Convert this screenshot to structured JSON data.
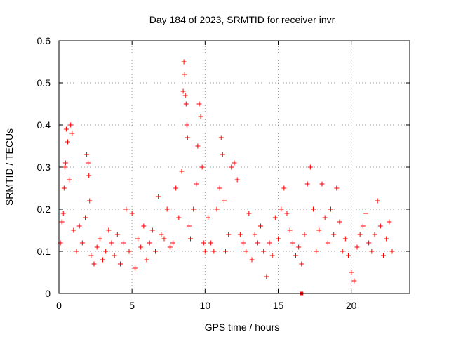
{
  "chart_data": {
    "type": "scatter",
    "title": "Day 184 of 2023, SRMTID for receiver invr",
    "xlabel": "GPS time / hours",
    "ylabel": "SRMTID / TECUs",
    "xlim": [
      0,
      24
    ],
    "ylim": [
      0,
      0.6
    ],
    "xticks": [
      0,
      5,
      10,
      15,
      20
    ],
    "xtick_labels": [
      "0",
      "5",
      "10",
      "15",
      "20"
    ],
    "yticks": [
      0,
      0.1,
      0.2,
      0.3,
      0.4,
      0.5,
      0.6
    ],
    "ytick_labels": [
      "0",
      "0.1",
      "0.2",
      "0.3",
      "0.4",
      "0.5",
      "0.6"
    ],
    "grid": true,
    "marker": "plus",
    "color": "#ff0000",
    "series": [
      {
        "name": "SRMTID",
        "points": [
          [
            0.1,
            0.12
          ],
          [
            0.2,
            0.17
          ],
          [
            0.3,
            0.19
          ],
          [
            0.35,
            0.25
          ],
          [
            0.4,
            0.3
          ],
          [
            0.45,
            0.31
          ],
          [
            0.5,
            0.39
          ],
          [
            0.6,
            0.36
          ],
          [
            0.7,
            0.27
          ],
          [
            0.8,
            0.4
          ],
          [
            0.9,
            0.38
          ],
          [
            1.0,
            0.15
          ],
          [
            1.2,
            0.1
          ],
          [
            1.4,
            0.16
          ],
          [
            1.6,
            0.12
          ],
          [
            1.8,
            0.18
          ],
          [
            1.9,
            0.33
          ],
          [
            2.0,
            0.31
          ],
          [
            2.05,
            0.28
          ],
          [
            2.1,
            0.22
          ],
          [
            2.2,
            0.09
          ],
          [
            2.4,
            0.07
          ],
          [
            2.6,
            0.11
          ],
          [
            2.8,
            0.13
          ],
          [
            3.0,
            0.08
          ],
          [
            3.2,
            0.1
          ],
          [
            3.4,
            0.15
          ],
          [
            3.6,
            0.12
          ],
          [
            3.8,
            0.09
          ],
          [
            4.0,
            0.14
          ],
          [
            4.2,
            0.07
          ],
          [
            4.4,
            0.12
          ],
          [
            4.6,
            0.2
          ],
          [
            4.8,
            0.1
          ],
          [
            5.0,
            0.19
          ],
          [
            5.2,
            0.06
          ],
          [
            5.4,
            0.13
          ],
          [
            5.6,
            0.11
          ],
          [
            5.8,
            0.16
          ],
          [
            6.0,
            0.08
          ],
          [
            6.2,
            0.12
          ],
          [
            6.4,
            0.15
          ],
          [
            6.6,
            0.1
          ],
          [
            6.8,
            0.23
          ],
          [
            7.0,
            0.14
          ],
          [
            7.2,
            0.13
          ],
          [
            7.4,
            0.2
          ],
          [
            7.6,
            0.11
          ],
          [
            7.8,
            0.12
          ],
          [
            8.0,
            0.25
          ],
          [
            8.2,
            0.18
          ],
          [
            8.4,
            0.29
          ],
          [
            8.5,
            0.48
          ],
          [
            8.55,
            0.55
          ],
          [
            8.6,
            0.52
          ],
          [
            8.65,
            0.47
          ],
          [
            8.7,
            0.45
          ],
          [
            8.75,
            0.4
          ],
          [
            8.8,
            0.37
          ],
          [
            8.9,
            0.16
          ],
          [
            9.0,
            0.13
          ],
          [
            9.2,
            0.2
          ],
          [
            9.4,
            0.26
          ],
          [
            9.5,
            0.35
          ],
          [
            9.6,
            0.45
          ],
          [
            9.7,
            0.42
          ],
          [
            9.8,
            0.3
          ],
          [
            9.9,
            0.12
          ],
          [
            10.0,
            0.1
          ],
          [
            10.2,
            0.18
          ],
          [
            10.4,
            0.12
          ],
          [
            10.6,
            0.1
          ],
          [
            10.8,
            0.2
          ],
          [
            11.0,
            0.25
          ],
          [
            11.1,
            0.37
          ],
          [
            11.2,
            0.33
          ],
          [
            11.3,
            0.22
          ],
          [
            11.4,
            0.1
          ],
          [
            11.6,
            0.14
          ],
          [
            11.8,
            0.3
          ],
          [
            12.0,
            0.31
          ],
          [
            12.2,
            0.27
          ],
          [
            12.4,
            0.14
          ],
          [
            12.6,
            0.12
          ],
          [
            12.8,
            0.1
          ],
          [
            13.0,
            0.19
          ],
          [
            13.2,
            0.08
          ],
          [
            13.4,
            0.14
          ],
          [
            13.6,
            0.12
          ],
          [
            13.8,
            0.16
          ],
          [
            14.0,
            0.1
          ],
          [
            14.2,
            0.04
          ],
          [
            14.4,
            0.12
          ],
          [
            14.6,
            0.09
          ],
          [
            14.8,
            0.18
          ],
          [
            15.0,
            0.13
          ],
          [
            15.2,
            0.2
          ],
          [
            15.4,
            0.25
          ],
          [
            15.6,
            0.19
          ],
          [
            15.8,
            0.15
          ],
          [
            16.0,
            0.12
          ],
          [
            16.2,
            0.09
          ],
          [
            16.4,
            0.11
          ],
          [
            16.6,
            0.07
          ],
          [
            16.8,
            0.14
          ],
          [
            17.0,
            0.26
          ],
          [
            17.2,
            0.3
          ],
          [
            17.4,
            0.2
          ],
          [
            17.6,
            0.1
          ],
          [
            17.8,
            0.15
          ],
          [
            18.0,
            0.26
          ],
          [
            18.2,
            0.18
          ],
          [
            18.4,
            0.12
          ],
          [
            18.6,
            0.2
          ],
          [
            18.8,
            0.14
          ],
          [
            19.0,
            0.25
          ],
          [
            19.2,
            0.17
          ],
          [
            19.4,
            0.1
          ],
          [
            19.6,
            0.13
          ],
          [
            19.8,
            0.09
          ],
          [
            20.0,
            0.05
          ],
          [
            20.2,
            0.03
          ],
          [
            20.4,
            0.11
          ],
          [
            20.6,
            0.14
          ],
          [
            20.8,
            0.16
          ],
          [
            21.0,
            0.19
          ],
          [
            21.2,
            0.12
          ],
          [
            21.4,
            0.1
          ],
          [
            21.6,
            0.14
          ],
          [
            21.8,
            0.22
          ],
          [
            22.0,
            0.16
          ],
          [
            22.2,
            0.09
          ],
          [
            22.4,
            0.13
          ],
          [
            22.6,
            0.17
          ],
          [
            22.8,
            0.1
          ]
        ]
      }
    ],
    "outlier_marker": {
      "x": 16.6,
      "y": 0.0,
      "shape": "square"
    }
  }
}
